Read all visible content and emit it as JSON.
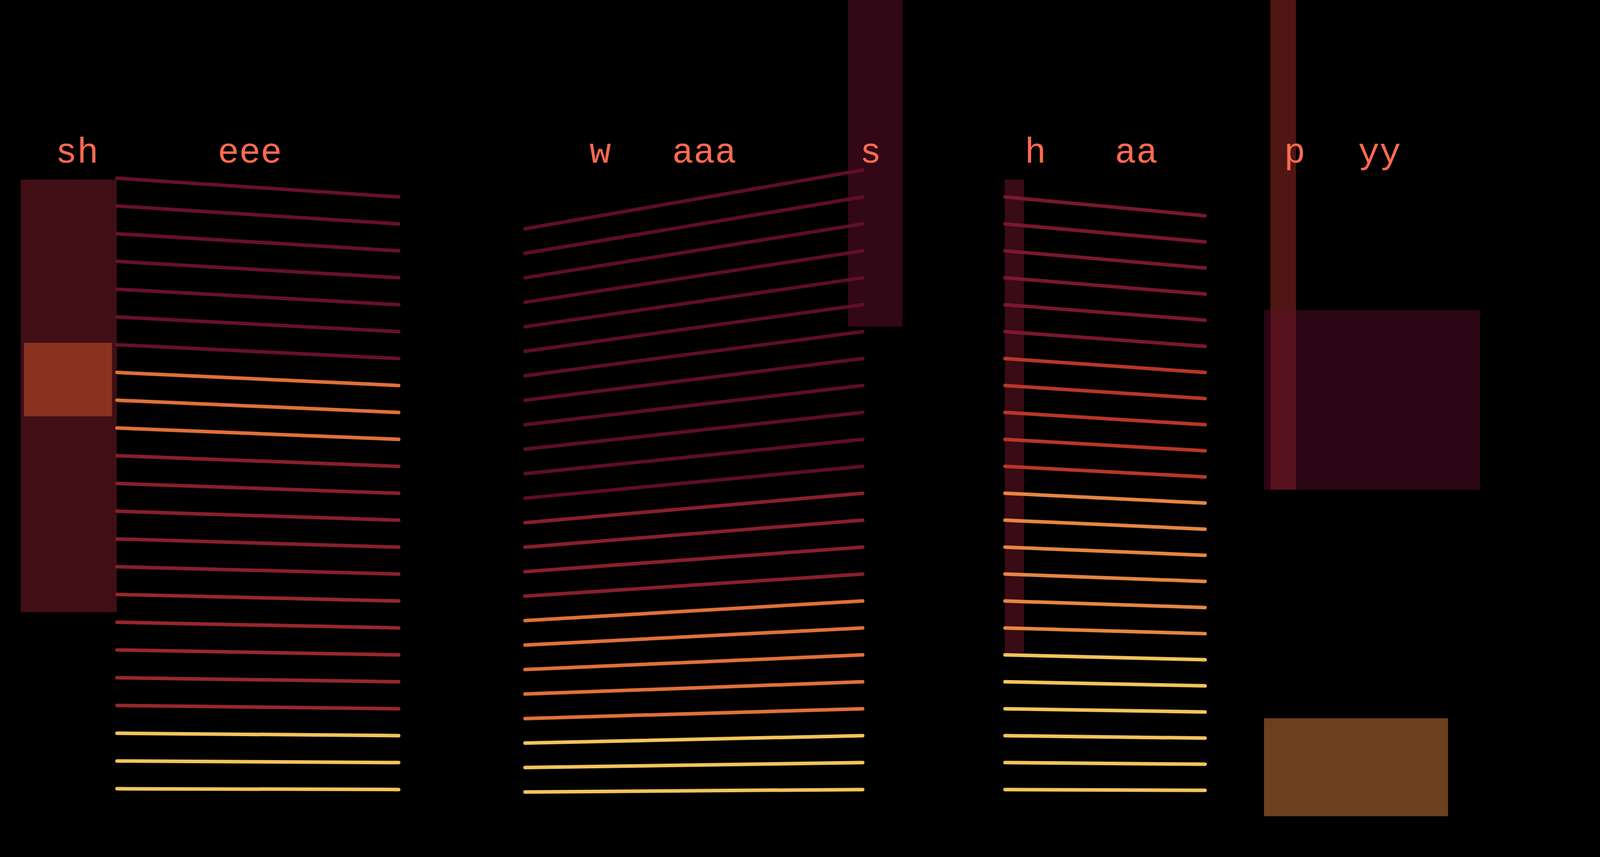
{
  "chart_data": {
    "type": "spectrogram",
    "tick_labels": false,
    "xlim": [
      0,
      100
    ],
    "ylim": [
      0,
      100
    ],
    "labels": [
      {
        "text": "sh",
        "time": 4.8,
        "freq": 81.5
      },
      {
        "text": "eee",
        "time": 15.6,
        "freq": 81.5
      },
      {
        "text": "w",
        "time": 37.5,
        "freq": 81.5
      },
      {
        "text": "aaa",
        "time": 44.0,
        "freq": 81.5
      },
      {
        "text": "s",
        "time": 54.4,
        "freq": 81.5
      },
      {
        "text": "h",
        "time": 64.7,
        "freq": 81.5
      },
      {
        "text": "aa",
        "time": 71.0,
        "freq": 81.5
      },
      {
        "text": "p",
        "time": 80.9,
        "freq": 81.5
      },
      {
        "text": "yy",
        "time": 86.2,
        "freq": 81.5
      }
    ],
    "segments": [
      {
        "kind": "voiced",
        "start": 7.3,
        "end": 24.9,
        "f0": [
          3.4,
          3.3
        ],
        "harmonics": 23,
        "bands": [
          {
            "lo": 0,
            "hi": 12,
            "level": 1
          },
          {
            "lo": 12,
            "hi": 30,
            "level": 0.5
          },
          {
            "lo": 30,
            "hi": 44,
            "level": 0.45
          },
          {
            "lo": 44,
            "hi": 56,
            "level": 0.8
          },
          {
            "lo": 56,
            "hi": 100,
            "level": 0.35
          }
        ]
      },
      {
        "kind": "voiced",
        "start": 32.8,
        "end": 53.9,
        "f0": [
          3.0,
          3.3
        ],
        "harmonics": 24,
        "bands": [
          {
            "lo": 0,
            "hi": 10,
            "level": 1
          },
          {
            "lo": 10,
            "hi": 26,
            "level": 0.8
          },
          {
            "lo": 26,
            "hi": 40,
            "level": 0.45
          },
          {
            "lo": 40,
            "hi": 100,
            "level": 0.3
          }
        ]
      },
      {
        "kind": "voiced",
        "start": 62.8,
        "end": 75.3,
        "f0": [
          3.3,
          3.2
        ],
        "harmonics": 23,
        "bands": [
          {
            "lo": 0,
            "hi": 22,
            "level": 1
          },
          {
            "lo": 22,
            "hi": 40,
            "level": 0.85
          },
          {
            "lo": 40,
            "hi": 56,
            "level": 0.6
          },
          {
            "lo": 56,
            "hi": 100,
            "level": 0.4
          }
        ]
      },
      {
        "kind": "noise",
        "start": 1.3,
        "end": 7.3,
        "lo": 25,
        "hi": 78,
        "level": 0.45
      },
      {
        "kind": "noise",
        "start": 1.5,
        "end": 7.0,
        "lo": 49,
        "hi": 58,
        "level": 0.75
      },
      {
        "kind": "noise",
        "start": 53.0,
        "end": 56.4,
        "lo": 60,
        "hi": 100,
        "level": 0.35
      },
      {
        "kind": "noise",
        "start": 62.8,
        "end": 64.0,
        "lo": 20,
        "hi": 78,
        "level": 0.4
      },
      {
        "kind": "noise",
        "start": 79.4,
        "end": 81.0,
        "lo": 40,
        "hi": 100,
        "level": 0.55
      },
      {
        "kind": "noise",
        "start": 79.0,
        "end": 92.5,
        "lo": 40,
        "hi": 62,
        "level": 0.3
      },
      {
        "kind": "noise",
        "start": 79.0,
        "end": 90.5,
        "lo": 0,
        "hi": 12,
        "level": 0.85
      }
    ]
  }
}
